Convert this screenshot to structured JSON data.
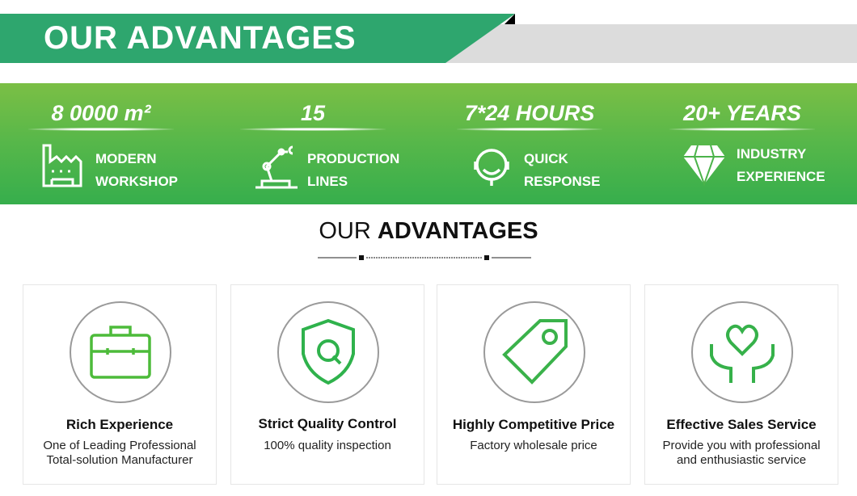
{
  "header": {
    "title": "OUR ADVANTAGES",
    "accent": "#2ea66e"
  },
  "stats": [
    {
      "value": "8 0000 m²",
      "label1": "MODERN",
      "label2": "WORKSHOP",
      "icon": "factory-icon"
    },
    {
      "value": "15",
      "label1": "PRODUCTION",
      "label2": "LINES",
      "icon": "robot-arm-icon"
    },
    {
      "value": "7*24 HOURS",
      "label1": "QUICK",
      "label2": "RESPONSE",
      "icon": "headset-icon"
    },
    {
      "value": "20+ YEARS",
      "label1": "INDUSTRY",
      "label2": "EXPERIENCE",
      "icon": "diamond-icon"
    }
  ],
  "section": {
    "title_light": "OUR",
    "title_bold": "ADVANTAGES"
  },
  "cards": [
    {
      "title": "Rich Experience",
      "desc1": "One of Leading Professional",
      "desc2": "Total-solution Manufacturer",
      "icon": "briefcase-icon"
    },
    {
      "title": "Strict Quality Control",
      "desc1": "100% quality inspection",
      "desc2": "",
      "icon": "shield-q-icon"
    },
    {
      "title": "Highly Competitive Price",
      "desc1": "Factory wholesale price",
      "desc2": "",
      "icon": "price-tag-icon"
    },
    {
      "title": "Effective Sales Service",
      "desc1": "Provide you with professional",
      "desc2": "and enthusiastic service",
      "icon": "heart-hands-icon"
    }
  ]
}
